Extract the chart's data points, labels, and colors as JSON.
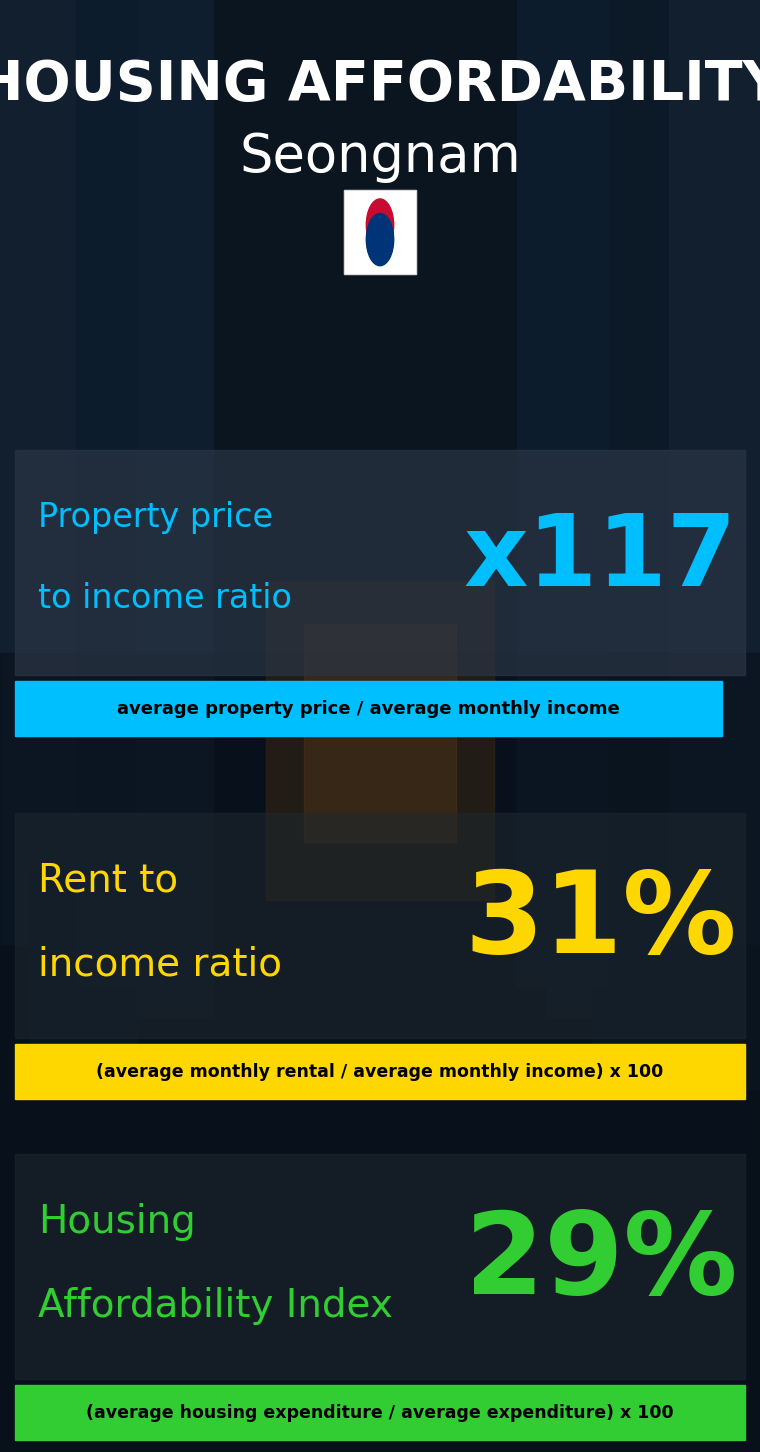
{
  "title_line1": "HOUSING AFFORDABILITY",
  "title_line2": "Seongnam",
  "section1_label_line1": "Property price",
  "section1_label_line2": "to income ratio",
  "section1_value": "x117",
  "section1_label_color": "#00BFFF",
  "section1_value_color": "#00BFFF",
  "section1_subtitle": "average property price / average monthly income",
  "section1_subtitle_bg": "#00BFFF",
  "section2_label_line1": "Rent to",
  "section2_label_line2": "income ratio",
  "section2_value": "31%",
  "section2_label_color": "#FFD700",
  "section2_value_color": "#FFD700",
  "section2_subtitle": "(average monthly rental / average monthly income) x 100",
  "section2_subtitle_bg": "#FFD700",
  "section3_label_line1": "Housing",
  "section3_label_line2": "Affordability Index",
  "section3_value": "29%",
  "section3_label_color": "#32CD32",
  "section3_value_color": "#32CD32",
  "section3_subtitle": "(average housing expenditure / average expenditure) x 100",
  "section3_subtitle_bg": "#32CD32",
  "bg_color": "#0d1b2a",
  "title_color": "#ffffff",
  "subtitle_text_color": "#000000",
  "panel_color": "#1a2535",
  "panel_alpha": 0.65
}
